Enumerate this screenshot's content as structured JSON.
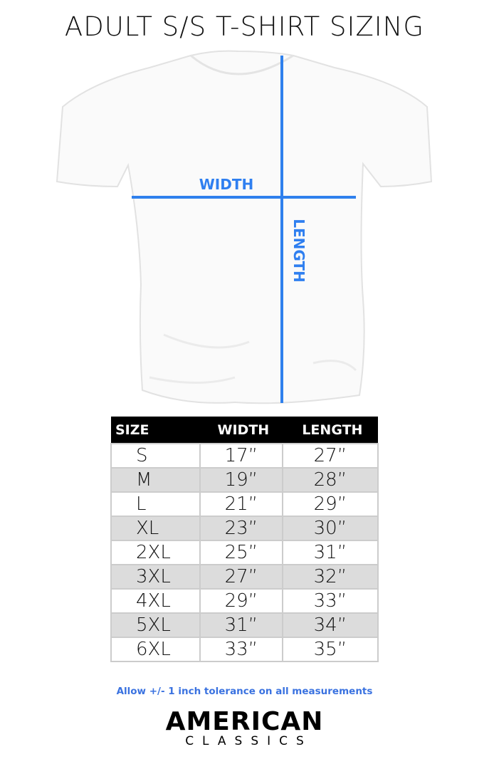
{
  "title": "ADULT S/S T-SHIRT SIZING",
  "diagram": {
    "width_label": "WIDTH",
    "length_label": "LENGTH",
    "line_color": "#2f80ed"
  },
  "table": {
    "headers": [
      "SIZE",
      "WIDTH",
      "LENGTH"
    ],
    "rows": [
      [
        "S",
        "17”",
        "27”"
      ],
      [
        "M",
        "19”",
        "28”"
      ],
      [
        "L",
        "21”",
        "29”"
      ],
      [
        "XL",
        "23”",
        "30”"
      ],
      [
        "2XL",
        "25”",
        "31”"
      ],
      [
        "3XL",
        "27”",
        "32”"
      ],
      [
        "4XL",
        "29”",
        "33”"
      ],
      [
        "5XL",
        "31”",
        "34”"
      ],
      [
        "6XL",
        "33”",
        "35”"
      ]
    ]
  },
  "note": "Allow +/- 1 inch tolerance on all measurements",
  "logo": {
    "line1": "AMERICAN",
    "line2": "CLASSICS"
  }
}
